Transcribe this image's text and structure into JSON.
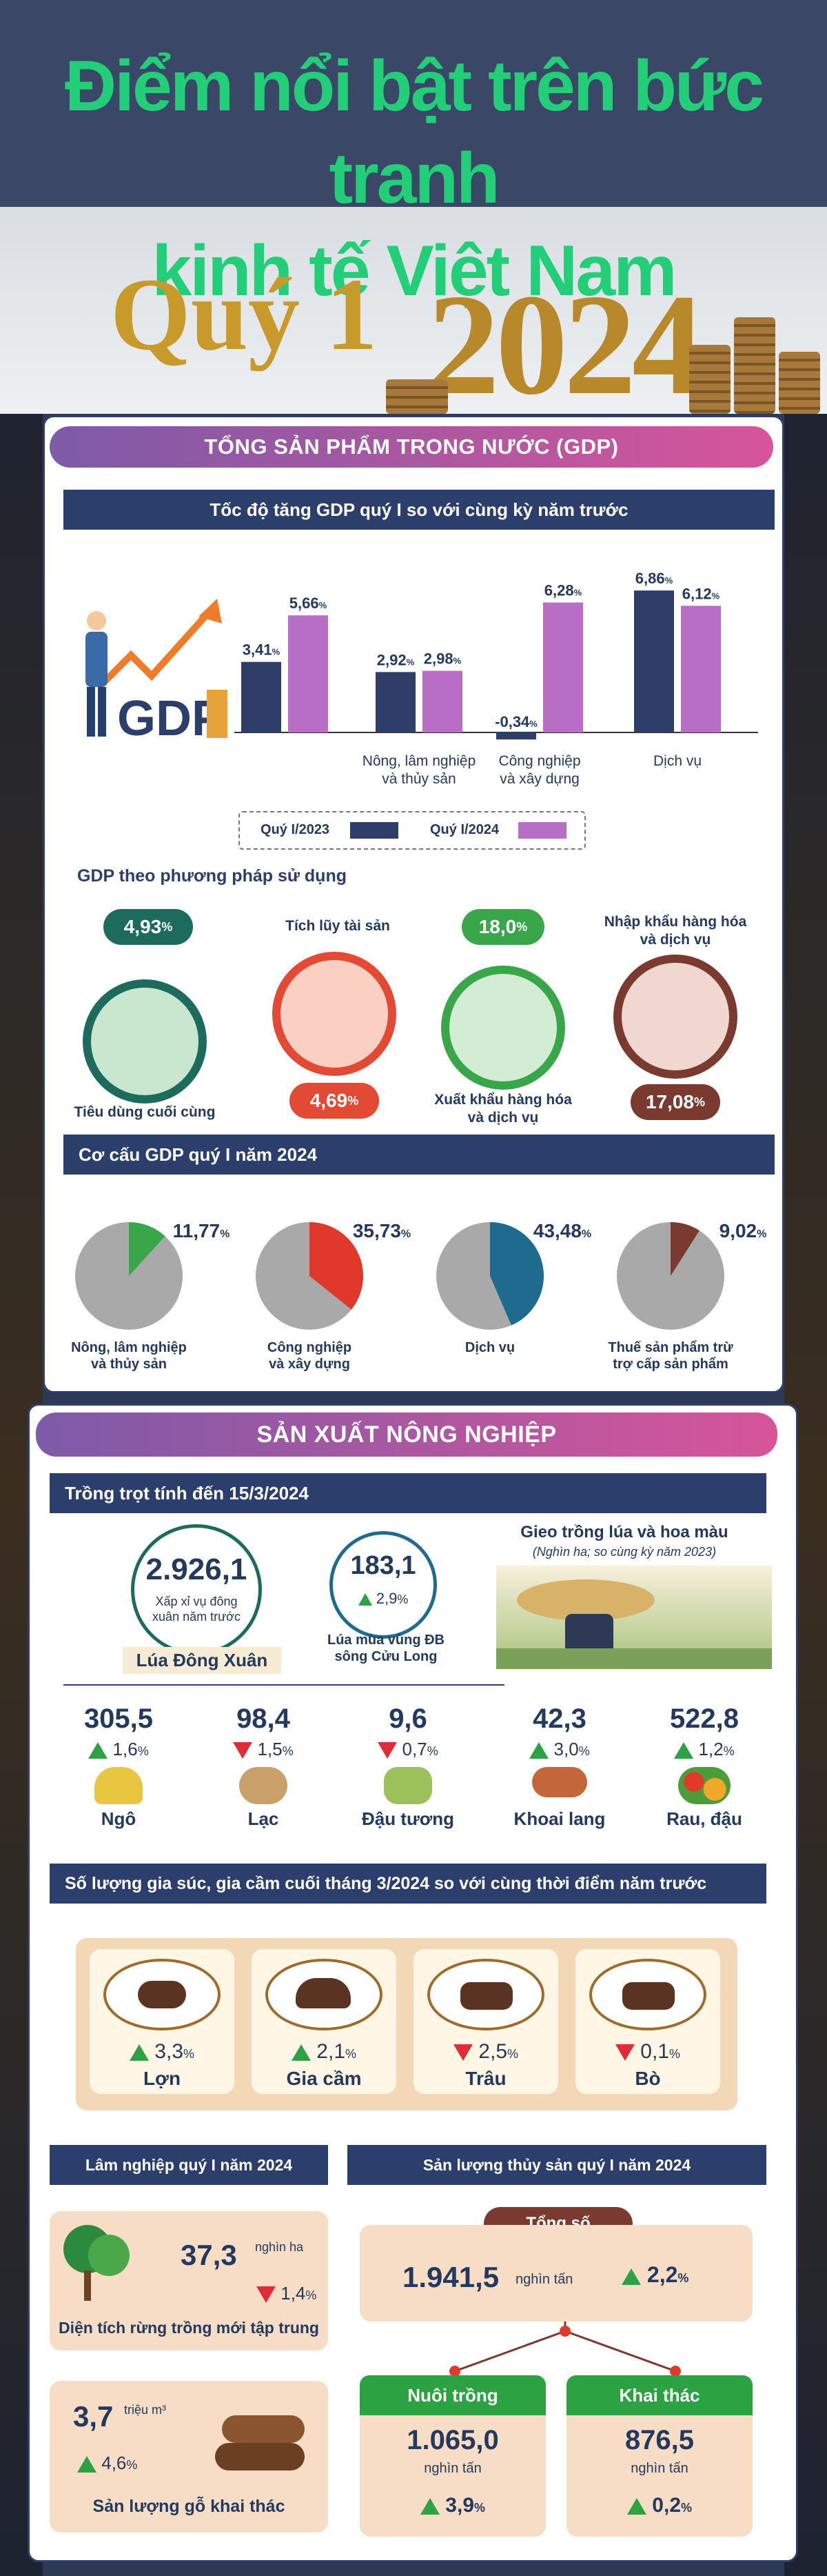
{
  "hero": {
    "title_line1": "Điểm nổi bật trên bức tranh",
    "title_line2": "kinh tế Việt Nam",
    "quarter": "Quý 1",
    "year": "2024"
  },
  "gdp": {
    "header": "TỔNG SẢN PHẨM TRONG NƯỚC (GDP)",
    "growth_title": "Tốc độ tăng GDP quý I so với cùng kỳ năm trước",
    "logo_text": "GDP",
    "unit": "%",
    "chart_data": {
      "type": "bar",
      "categories": [
        "",
        "Nông, lâm nghiệp và thủy sản",
        "Công nghiệp và xây dựng",
        "Dịch vụ"
      ],
      "series": [
        {
          "name": "Quý I/2023",
          "values": [
            3.41,
            2.92,
            -0.34,
            6.86
          ],
          "labels": [
            "3,41",
            "2,92",
            "-0,34",
            "6,86"
          ],
          "color": "#2f3e68"
        },
        {
          "name": "Quý I/2024",
          "values": [
            5.66,
            2.98,
            6.28,
            6.12
          ],
          "labels": [
            "5,66",
            "2,98",
            "6,28",
            "6,12"
          ],
          "color": "#b76ec4"
        }
      ],
      "category_lines": [
        [
          "",
          ""
        ],
        [
          "Nông, lâm nghiệp",
          "và thủy sản"
        ],
        [
          "Công nghiệp",
          "và xây dựng"
        ],
        [
          "Dịch vụ",
          ""
        ]
      ]
    },
    "usage_title": "GDP theo phương pháp sử dụng",
    "usage": [
      {
        "label": "Tiêu dùng cuối cùng",
        "value": "4,93",
        "color": "#1c6b5d"
      },
      {
        "label": "Tích lũy tài sản",
        "value": "4,69",
        "color": "#e24a35"
      },
      {
        "label_1": "Xuất khẩu hàng hóa",
        "label_2": "và dịch vụ",
        "value": "18,0",
        "color": "#3aa64a"
      },
      {
        "label_1": "Nhập khẩu hàng hóa",
        "label_2": "và dịch vụ",
        "value": "17,08",
        "color": "#7a3a30"
      }
    ],
    "structure_title": "Cơ cấu GDP quý I năm 2024",
    "structure": {
      "chart_data": {
        "type": "pie",
        "slices": [
          {
            "value": 11.77,
            "label": "11,77",
            "name_1": "Nông, lâm nghiệp",
            "name_2": "và thủy sản",
            "color": "#3aa64a"
          },
          {
            "value": 35.73,
            "label": "35,73",
            "name_1": "Công nghiệp",
            "name_2": "và xây dựng",
            "color": "#e0392b"
          },
          {
            "value": 43.48,
            "label": "43,48",
            "name_1": "Dịch vụ",
            "name_2": "",
            "color": "#1e6b8f"
          },
          {
            "value": 9.02,
            "label": "9,02",
            "name_1": "Thuế sản phẩm trừ",
            "name_2": "trợ cấp sản phẩm",
            "color": "#7a3a30"
          }
        ]
      }
    }
  },
  "agri": {
    "header": "SẢN XUẤT NÔNG NGHIỆP",
    "crop_title": "Trồng trọt tính đến 15/3/2024",
    "rice_value": "2.926,1",
    "rice_note_1": "Xấp xỉ vụ đông",
    "rice_note_2": "xuân năm trước",
    "rice_label": "Lúa Đông Xuân",
    "mekong_value": "183,1",
    "mekong_change": "2,9",
    "mekong_label_1": "Lúa mùa vùng ĐB",
    "mekong_label_2": "sông Cửu Long",
    "planting_title": "Gieo trồng lúa và hoa màu",
    "planting_note": "(Nghìn ha; so cùng kỳ năm 2023)",
    "crops": [
      {
        "name": "Ngô",
        "value": "305,5",
        "change": "1,6",
        "dir": "up"
      },
      {
        "name": "Lạc",
        "value": "98,4",
        "change": "1,5",
        "dir": "down"
      },
      {
        "name": "Đậu tương",
        "value": "9,6",
        "change": "0,7",
        "dir": "down"
      },
      {
        "name": "Khoai lang",
        "value": "42,3",
        "change": "3,0",
        "dir": "up"
      },
      {
        "name": "Rau, đậu",
        "value": "522,8",
        "change": "1,2",
        "dir": "up"
      }
    ],
    "livestock_title": "Số lượng gia súc, gia cầm cuối tháng 3/2024 so với cùng thời điểm năm trước",
    "livestock": [
      {
        "name": "Lợn",
        "change": "3,3",
        "dir": "up"
      },
      {
        "name": "Gia cầm",
        "change": "2,1",
        "dir": "up"
      },
      {
        "name": "Trâu",
        "change": "2,5",
        "dir": "down"
      },
      {
        "name": "Bò",
        "change": "0,1",
        "dir": "down"
      }
    ],
    "forest_title": "Lâm nghiệp quý I năm 2024",
    "forest_area_value": "37,3",
    "forest_area_unit": "nghìn ha",
    "forest_area_change": "1,4",
    "forest_area_label": "Diện tích rừng trồng mới tập trung",
    "wood_value": "3,7",
    "wood_unit": "triệu m³",
    "wood_change": "4,6",
    "wood_label": "Sản lượng gỗ khai thác",
    "fish_title": "Sản lượng thủy sản quý I năm 2024",
    "fish_total_label": "Tổng số",
    "fish_total_value": "1.941,5",
    "fish_total_unit": "nghìn tấn",
    "fish_total_change": "2,2",
    "farm_label": "Nuôi trồng",
    "farm_value": "1.065,0",
    "farm_unit": "nghìn tấn",
    "farm_change": "3,9",
    "catch_label": "Khai thác",
    "catch_value": "876,5",
    "catch_unit": "nghìn tấn",
    "catch_change": "0,2",
    "pct": "%"
  }
}
